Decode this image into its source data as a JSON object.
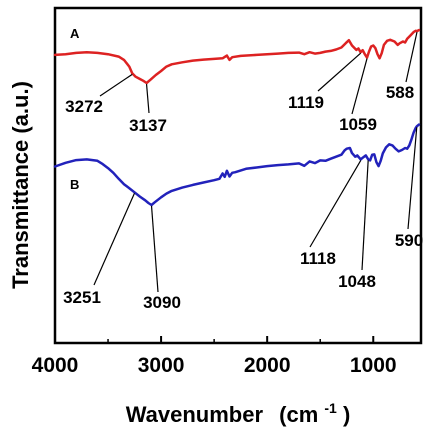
{
  "chart_data": {
    "type": "line",
    "xlabel": "Wavenumber",
    "xlabel_unit_base": "(cm",
    "xlabel_unit_exp": "-1",
    "xlabel_unit_close": ")",
    "ylabel": "Transmittance (a.u.)",
    "xlim": [
      4000,
      550
    ],
    "ylim": [
      0,
      1
    ],
    "x_ticks": [
      4000,
      3000,
      2000,
      1000
    ],
    "x_tick_labels": [
      "4000",
      "3000",
      "2000",
      "1000"
    ],
    "grid": false,
    "series": [
      {
        "name": "A",
        "color": "#dd2222",
        "points": [
          [
            4000,
            0.86
          ],
          [
            3900,
            0.862
          ],
          [
            3800,
            0.866
          ],
          [
            3700,
            0.868
          ],
          [
            3600,
            0.866
          ],
          [
            3500,
            0.862
          ],
          [
            3400,
            0.855
          ],
          [
            3350,
            0.845
          ],
          [
            3300,
            0.825
          ],
          [
            3272,
            0.805
          ],
          [
            3240,
            0.795
          ],
          [
            3200,
            0.788
          ],
          [
            3170,
            0.783
          ],
          [
            3137,
            0.776
          ],
          [
            3100,
            0.786
          ],
          [
            3050,
            0.8
          ],
          [
            3000,
            0.812
          ],
          [
            2950,
            0.825
          ],
          [
            2900,
            0.832
          ],
          [
            2800,
            0.838
          ],
          [
            2700,
            0.843
          ],
          [
            2600,
            0.846
          ],
          [
            2500,
            0.848
          ],
          [
            2420,
            0.85
          ],
          [
            2380,
            0.858
          ],
          [
            2355,
            0.845
          ],
          [
            2330,
            0.853
          ],
          [
            2250,
            0.857
          ],
          [
            2100,
            0.86
          ],
          [
            2000,
            0.862
          ],
          [
            1900,
            0.864
          ],
          [
            1800,
            0.866
          ],
          [
            1700,
            0.867
          ],
          [
            1650,
            0.862
          ],
          [
            1600,
            0.868
          ],
          [
            1550,
            0.864
          ],
          [
            1500,
            0.866
          ],
          [
            1450,
            0.87
          ],
          [
            1400,
            0.872
          ],
          [
            1350,
            0.876
          ],
          [
            1300,
            0.882
          ],
          [
            1260,
            0.895
          ],
          [
            1230,
            0.904
          ],
          [
            1200,
            0.888
          ],
          [
            1160,
            0.875
          ],
          [
            1140,
            0.879
          ],
          [
            1119,
            0.868
          ],
          [
            1100,
            0.874
          ],
          [
            1080,
            0.862
          ],
          [
            1059,
            0.852
          ],
          [
            1040,
            0.87
          ],
          [
            1020,
            0.885
          ],
          [
            1000,
            0.888
          ],
          [
            980,
            0.88
          ],
          [
            960,
            0.862
          ],
          [
            940,
            0.85
          ],
          [
            920,
            0.865
          ],
          [
            900,
            0.89
          ],
          [
            870,
            0.902
          ],
          [
            840,
            0.905
          ],
          [
            800,
            0.9
          ],
          [
            770,
            0.89
          ],
          [
            750,
            0.895
          ],
          [
            720,
            0.9
          ],
          [
            700,
            0.897
          ],
          [
            680,
            0.908
          ],
          [
            650,
            0.918
          ],
          [
            620,
            0.928
          ],
          [
            600,
            0.932
          ],
          [
            588,
            0.931
          ],
          [
            570,
            0.934
          ]
        ],
        "annotations": [
          {
            "label": "3272",
            "x": 3272
          },
          {
            "label": "3137",
            "x": 3137
          },
          {
            "label": "1119",
            "x": 1119
          },
          {
            "label": "1059",
            "x": 1059
          },
          {
            "label": "588",
            "x": 588
          }
        ]
      },
      {
        "name": "B",
        "color": "#2222bb",
        "points": [
          [
            4000,
            0.527
          ],
          [
            3900,
            0.538
          ],
          [
            3800,
            0.546
          ],
          [
            3700,
            0.548
          ],
          [
            3600,
            0.544
          ],
          [
            3550,
            0.534
          ],
          [
            3500,
            0.522
          ],
          [
            3450,
            0.508
          ],
          [
            3400,
            0.49
          ],
          [
            3350,
            0.474
          ],
          [
            3300,
            0.462
          ],
          [
            3251,
            0.45
          ],
          [
            3200,
            0.437
          ],
          [
            3150,
            0.426
          ],
          [
            3120,
            0.418
          ],
          [
            3090,
            0.412
          ],
          [
            3060,
            0.42
          ],
          [
            3000,
            0.435
          ],
          [
            2950,
            0.446
          ],
          [
            2900,
            0.454
          ],
          [
            2800,
            0.464
          ],
          [
            2700,
            0.472
          ],
          [
            2600,
            0.479
          ],
          [
            2500,
            0.486
          ],
          [
            2450,
            0.49
          ],
          [
            2420,
            0.506
          ],
          [
            2400,
            0.496
          ],
          [
            2380,
            0.514
          ],
          [
            2355,
            0.497
          ],
          [
            2330,
            0.508
          ],
          [
            2300,
            0.51
          ],
          [
            2200,
            0.52
          ],
          [
            2100,
            0.524
          ],
          [
            2000,
            0.528
          ],
          [
            1900,
            0.531
          ],
          [
            1800,
            0.533
          ],
          [
            1700,
            0.536
          ],
          [
            1650,
            0.529
          ],
          [
            1600,
            0.542
          ],
          [
            1550,
            0.537
          ],
          [
            1500,
            0.545
          ],
          [
            1450,
            0.544
          ],
          [
            1400,
            0.55
          ],
          [
            1350,
            0.556
          ],
          [
            1300,
            0.562
          ],
          [
            1270,
            0.575
          ],
          [
            1250,
            0.58
          ],
          [
            1220,
            0.582
          ],
          [
            1200,
            0.567
          ],
          [
            1170,
            0.556
          ],
          [
            1150,
            0.56
          ],
          [
            1118,
            0.548
          ],
          [
            1100,
            0.553
          ],
          [
            1070,
            0.56
          ],
          [
            1048,
            0.548
          ],
          [
            1030,
            0.545
          ],
          [
            1010,
            0.562
          ],
          [
            990,
            0.563
          ],
          [
            970,
            0.54
          ],
          [
            950,
            0.528
          ],
          [
            930,
            0.544
          ],
          [
            910,
            0.566
          ],
          [
            880,
            0.584
          ],
          [
            850,
            0.593
          ],
          [
            820,
            0.59
          ],
          [
            790,
            0.58
          ],
          [
            760,
            0.572
          ],
          [
            730,
            0.576
          ],
          [
            700,
            0.582
          ],
          [
            680,
            0.58
          ],
          [
            660,
            0.59
          ],
          [
            640,
            0.608
          ],
          [
            620,
            0.628
          ],
          [
            600,
            0.642
          ],
          [
            590,
            0.647
          ],
          [
            570,
            0.652
          ]
        ],
        "annotations": [
          {
            "label": "3251",
            "x": 3251
          },
          {
            "label": "3090",
            "x": 3090
          },
          {
            "label": "1118",
            "x": 1118
          },
          {
            "label": "1048",
            "x": 1048
          },
          {
            "label": "590",
            "x": 590
          }
        ]
      }
    ]
  }
}
